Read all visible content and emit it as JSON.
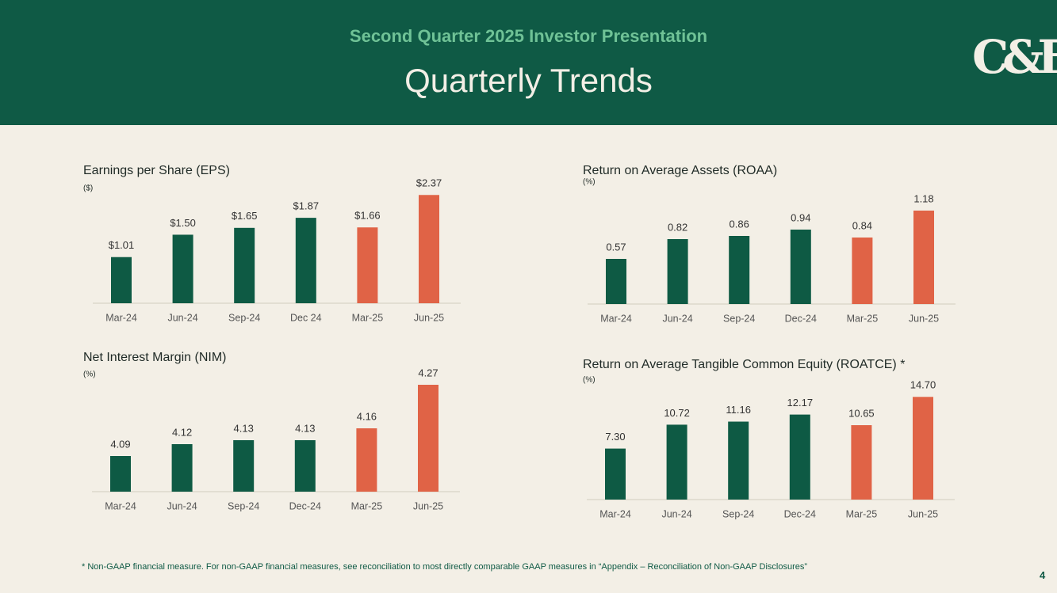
{
  "header": {
    "subtitle": "Second Quarter 2025 Investor Presentation",
    "title": "Quarterly Trends",
    "logo": "C&F"
  },
  "chart_data": [
    {
      "type": "bar",
      "title": "Earnings per Share (EPS)",
      "subtitle": "($)",
      "categories": [
        "Mar-24",
        "Jun-24",
        "Sep-24",
        "Dec 24",
        "Mar-25",
        "Jun-25"
      ],
      "values": [
        1.01,
        1.5,
        1.65,
        1.87,
        1.66,
        2.37
      ],
      "value_labels": [
        "$1.01",
        "$1.50",
        "$1.65",
        "$1.87",
        "$1.66",
        "$2.37"
      ],
      "colors": [
        "#0e5a44",
        "#0e5a44",
        "#0e5a44",
        "#0e5a44",
        "#e06346",
        "#e06346"
      ],
      "ylim": [
        0,
        2.6
      ]
    },
    {
      "type": "bar",
      "title": "Return on Average Assets (ROAA)",
      "subtitle": "(%)",
      "categories": [
        "Mar-24",
        "Jun-24",
        "Sep-24",
        "Dec-24",
        "Mar-25",
        "Jun-25"
      ],
      "values": [
        0.57,
        0.82,
        0.86,
        0.94,
        0.84,
        1.18
      ],
      "colors": [
        "#0e5a44",
        "#0e5a44",
        "#0e5a44",
        "#0e5a44",
        "#e06346",
        "#e06346"
      ],
      "ylim": [
        0,
        1.5
      ]
    },
    {
      "type": "bar",
      "title": "Net Interest Margin (NIM)",
      "subtitle": "(%)",
      "categories": [
        "Mar-24",
        "Jun-24",
        "Sep-24",
        "Dec-24",
        "Mar-25",
        "Jun-25"
      ],
      "values": [
        4.09,
        4.12,
        4.13,
        4.13,
        4.16,
        4.27
      ],
      "colors": [
        "#0e5a44",
        "#0e5a44",
        "#0e5a44",
        "#0e5a44",
        "#e06346",
        "#e06346"
      ],
      "ylim": [
        4.0,
        4.3
      ]
    },
    {
      "type": "bar",
      "title": "Return on Average Tangible Common Equity (ROATCE) *",
      "subtitle": "(%)",
      "categories": [
        "Mar-24",
        "Jun-24",
        "Sep-24",
        "Dec-24",
        "Mar-25",
        "Jun-25"
      ],
      "values": [
        7.3,
        10.72,
        11.16,
        12.17,
        10.65,
        14.7
      ],
      "value_labels": [
        "7.30",
        "10.72",
        "11.16",
        "12.17",
        "10.65",
        "14.70"
      ],
      "colors": [
        "#0e5a44",
        "#0e5a44",
        "#0e5a44",
        "#0e5a44",
        "#e06346",
        "#e06346"
      ],
      "ylim": [
        0,
        17
      ]
    }
  ],
  "footnote": "* Non-GAAP financial measure.  For non-GAAP financial measures, see reconciliation to most directly comparable GAAP measures in “Appendix – Reconciliation of Non-GAAP Disclosures”",
  "page_number": "4"
}
